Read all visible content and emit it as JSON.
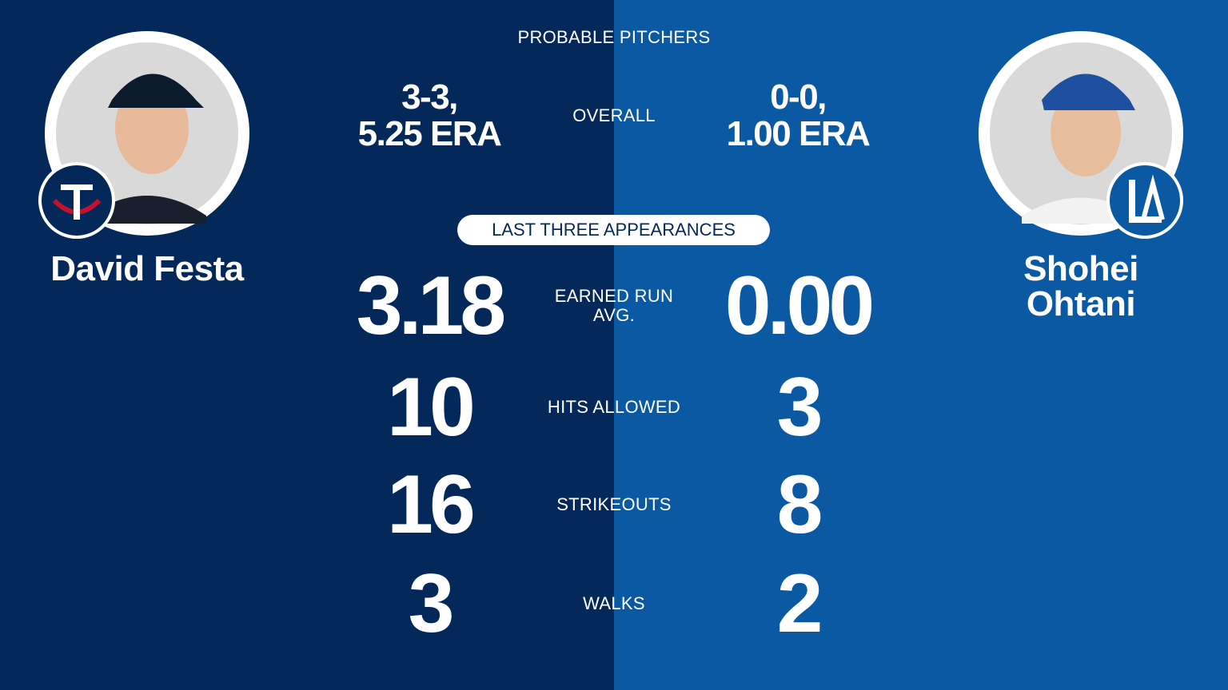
{
  "header": {
    "title": "PROBABLE PITCHERS"
  },
  "pitchers": [
    {
      "name_lines": [
        "David Festa"
      ],
      "overall_lines": [
        "3-3,",
        "5.25 ERA"
      ]
    },
    {
      "name_lines": [
        "Shohei",
        "Ohtani"
      ],
      "overall_lines": [
        "0-0,",
        "1.00 ERA"
      ]
    }
  ],
  "overall_label": "OVERALL",
  "section_label": "LAST THREE APPEARANCES",
  "stats": [
    {
      "label_lines": [
        "EARNED RUN",
        "AVG."
      ],
      "left": "3.18",
      "right": "0.00"
    },
    {
      "label_lines": [
        "HITS ALLOWED"
      ],
      "left": "10",
      "right": "3"
    },
    {
      "label_lines": [
        "STRIKEOUTS"
      ],
      "left": "16",
      "right": "8"
    },
    {
      "label_lines": [
        "WALKS"
      ],
      "left": "3",
      "right": "2"
    }
  ]
}
